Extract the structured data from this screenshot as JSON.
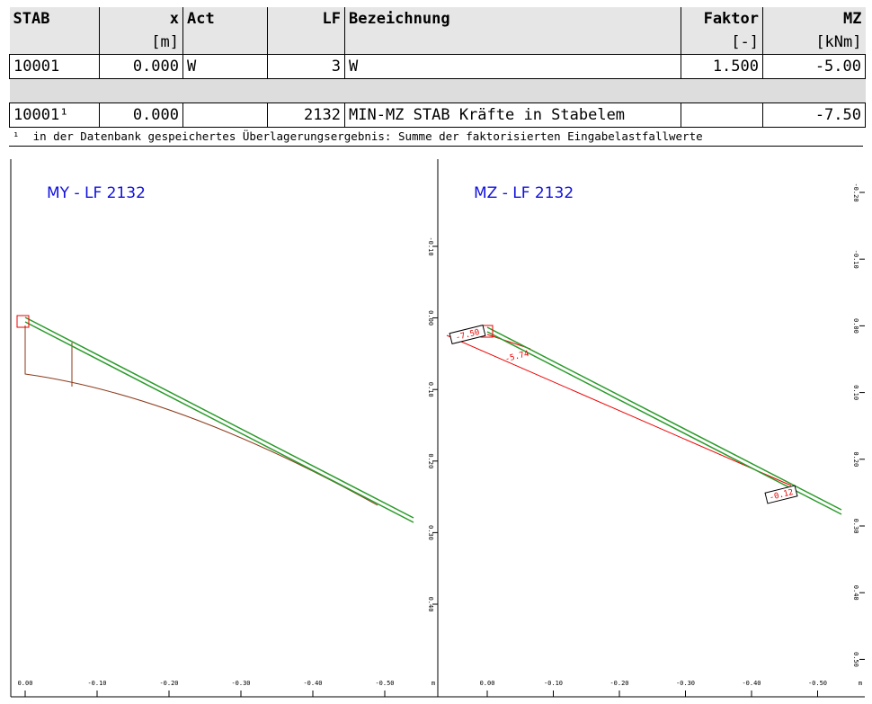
{
  "table": {
    "columns": [
      {
        "name": "STAB"
      },
      {
        "name": "x",
        "unit": "[m]"
      },
      {
        "name": "Act"
      },
      {
        "name": "LF"
      },
      {
        "name": "Bezeichnung"
      },
      {
        "name": "Faktor",
        "unit": "[-]"
      },
      {
        "name": "MZ",
        "unit": "[kNm]"
      }
    ],
    "rows": [
      [
        "10001",
        "0.000",
        "W",
        "3",
        "W",
        "1.500",
        "-5.00"
      ],
      [
        "10001¹",
        "0.000",
        null,
        "2132",
        "MIN-MZ STAB Kräfte in Stabelem",
        null,
        "-7.50"
      ]
    ],
    "footnote": {
      "marker": "¹",
      "text": "in der Datenbank gespeichertes Überlagerungsergebnis: Summe der faktorisierten Eingabelastfallwerte"
    }
  },
  "panels": [
    {
      "title": "MY - LF 2132",
      "xticks": [
        "0.00",
        "-0.10",
        "-0.20",
        "-0.30",
        "-0.40",
        "-0.50"
      ],
      "xunit": "m",
      "yticks": [
        "-0.10",
        "0.00",
        "0.10",
        "0.20",
        "0.30",
        "0.40"
      ]
    },
    {
      "title": "MZ - LF 2132",
      "xticks": [
        "0.00",
        "-0.10",
        "-0.20",
        "-0.30",
        "-0.40",
        "-0.50"
      ],
      "xunit": "m",
      "yticks": [
        "-0.20",
        "-0.10",
        "0.00",
        "0.10",
        "0.20",
        "0.30",
        "0.40",
        "0.50"
      ],
      "labels": [
        "-7.50",
        "-5.74",
        "-0.12"
      ]
    }
  ]
}
